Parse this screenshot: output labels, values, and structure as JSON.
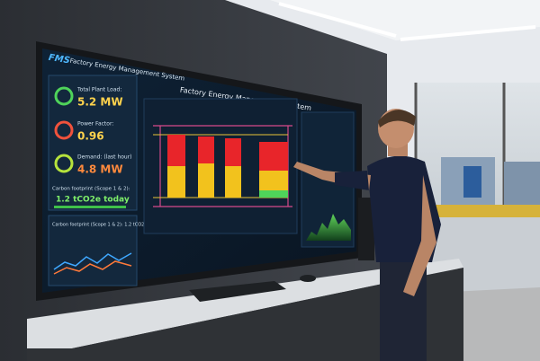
{
  "screen": {
    "logo": "FMS",
    "header": "Factory Energy Management System",
    "title": "Factory Energy Management System",
    "metrics": [
      {
        "label": "Total Plant Load:",
        "value": "5.2 MW"
      },
      {
        "label": "Power Factor:",
        "value": "0.96"
      },
      {
        "label": "Demand: (last hour)",
        "value": "4.8 MW"
      }
    ],
    "carbon": {
      "label": "Carbon footprint (Scope 1 & 2):",
      "value": "1.2 tCO2e today"
    },
    "chart_title": "Carbon footprint (Scope 1 & 2): 1.2 tCO2e"
  }
}
